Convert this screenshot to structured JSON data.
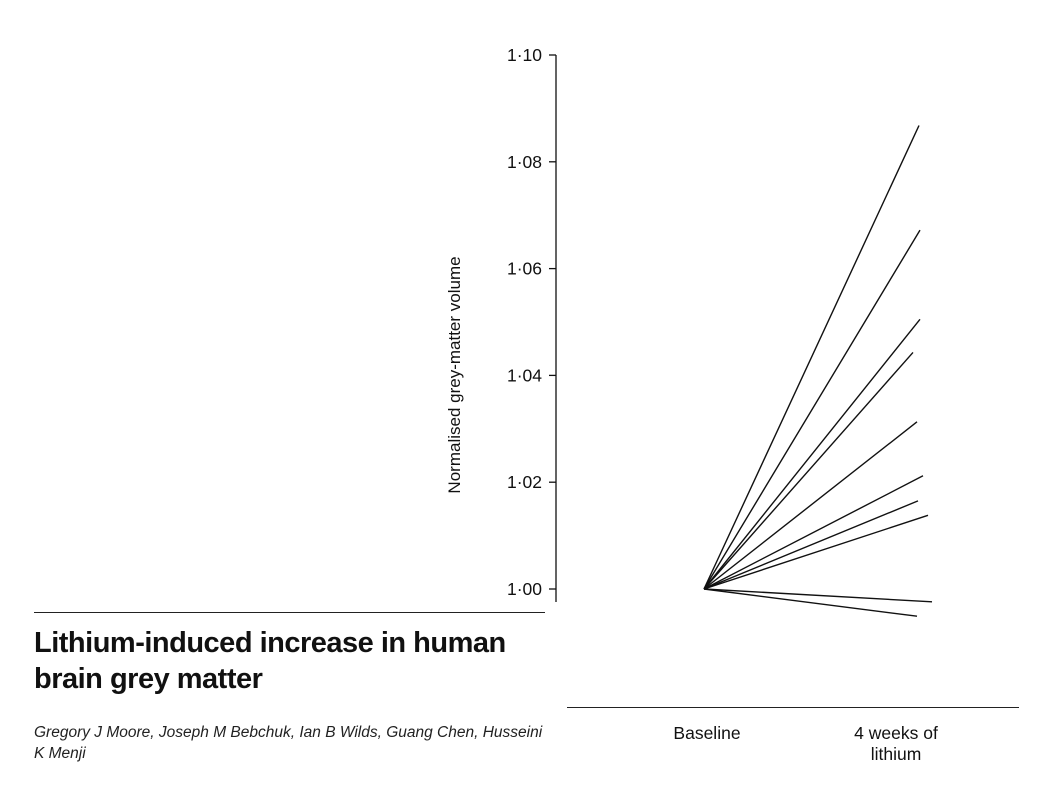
{
  "chart_data": {
    "type": "line",
    "title": "",
    "xlabel": "",
    "ylabel": "Normalised grey-matter volume",
    "categories": [
      "Baseline",
      "4 weeks of\nlithium"
    ],
    "ylim": [
      1.0,
      1.1
    ],
    "y_ticks": [
      "1·00",
      "1·02",
      "1·04",
      "1·06",
      "1·08",
      "1·10"
    ],
    "y_tick_values": [
      1.0,
      1.02,
      1.04,
      1.06,
      1.08,
      1.1
    ],
    "grid": false,
    "series": [
      {
        "values": [
          1.0,
          1.0868
        ]
      },
      {
        "values": [
          1.0,
          1.0672
        ]
      },
      {
        "values": [
          1.0,
          1.0505
        ]
      },
      {
        "values": [
          1.0,
          1.0443
        ]
      },
      {
        "values": [
          1.0,
          1.0313
        ]
      },
      {
        "values": [
          1.0,
          1.0212
        ]
      },
      {
        "values": [
          1.0,
          1.0165
        ]
      },
      {
        "values": [
          1.0,
          1.0138
        ]
      },
      {
        "values": [
          1.0,
          0.9976
        ]
      },
      {
        "values": [
          1.0,
          0.9949
        ]
      }
    ]
  },
  "paper": {
    "title": "Lithium-induced increase in human brain grey matter",
    "authors": "Gregory J Moore, Joseph M Bebchuk, Ian B Wilds, Guang Chen, Husseini K Menji"
  }
}
